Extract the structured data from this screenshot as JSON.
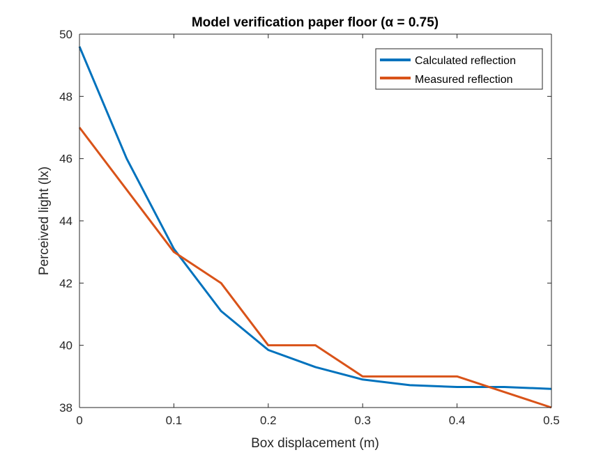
{
  "chart_data": {
    "type": "line",
    "title": "Model verification paper floor (α = 0.75)",
    "xlabel": "Box displacement (m)",
    "ylabel": "Perceived light (lx)",
    "xlim": [
      0,
      0.5
    ],
    "ylim": [
      38,
      50
    ],
    "xticks": [
      0,
      0.1,
      0.2,
      0.3,
      0.4,
      0.5
    ],
    "yticks": [
      38,
      40,
      42,
      44,
      46,
      48,
      50
    ],
    "xtick_labels": [
      "0",
      "0.1",
      "0.2",
      "0.3",
      "0.4",
      "0.5"
    ],
    "ytick_labels": [
      "38",
      "40",
      "42",
      "44",
      "46",
      "48",
      "50"
    ],
    "grid": false,
    "legend_position": "top-right",
    "series": [
      {
        "name": "Calculated reflection",
        "color": "#0072BD",
        "x": [
          0,
          0.05,
          0.1,
          0.15,
          0.2,
          0.25,
          0.3,
          0.35,
          0.4,
          0.45,
          0.5
        ],
        "y": [
          49.6,
          46.0,
          43.1,
          41.1,
          39.85,
          39.3,
          38.9,
          38.72,
          38.66,
          38.66,
          38.6
        ]
      },
      {
        "name": "Measured reflection",
        "color": "#D95319",
        "x": [
          0,
          0.05,
          0.1,
          0.15,
          0.2,
          0.25,
          0.3,
          0.35,
          0.4,
          0.45,
          0.5
        ],
        "y": [
          47.0,
          45.0,
          43.0,
          42.0,
          40.0,
          40.0,
          39.0,
          39.0,
          39.0,
          38.5,
          38.0
        ]
      }
    ]
  }
}
